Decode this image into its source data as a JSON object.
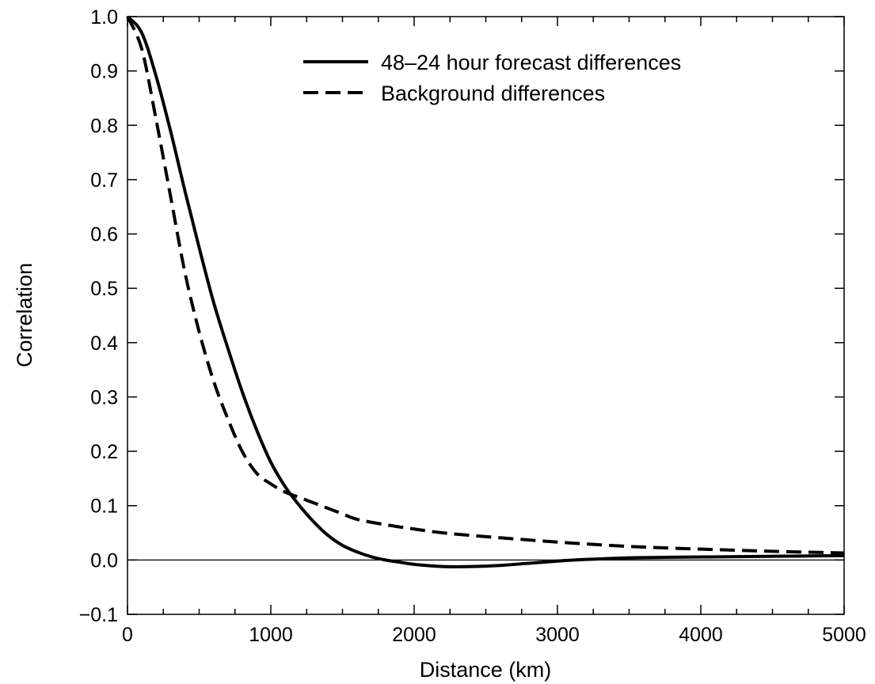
{
  "chart_data": {
    "type": "line",
    "title": "",
    "xlabel": "Distance (km)",
    "ylabel": "Correlation",
    "xlim": [
      0,
      5000
    ],
    "ylim": [
      -0.1,
      1.0
    ],
    "x_ticks": [
      0,
      1000,
      2000,
      3000,
      4000,
      5000
    ],
    "x_tick_labels": [
      "0",
      "1000",
      "2000",
      "3000",
      "4000",
      "5000"
    ],
    "y_ticks": [
      -0.1,
      0.0,
      0.1,
      0.2,
      0.3,
      0.4,
      0.5,
      0.6,
      0.7,
      0.8,
      0.9,
      1.0
    ],
    "y_tick_labels": [
      "−0.1",
      "0.0",
      "0.1",
      "0.2",
      "0.3",
      "0.4",
      "0.5",
      "0.6",
      "0.7",
      "0.8",
      "0.9",
      "1.0"
    ],
    "zero_line": true,
    "grid": false,
    "legend_position": "top-right",
    "series": [
      {
        "name": "48–24 hour forecast differences",
        "style": "solid",
        "color": "#000000",
        "x": [
          0,
          100,
          200,
          300,
          400,
          500,
          600,
          700,
          800,
          900,
          1000,
          1100,
          1200,
          1300,
          1400,
          1500,
          1600,
          1700,
          1800,
          1900,
          2000,
          2200,
          2400,
          2600,
          2800,
          3000,
          3200,
          3500,
          3800,
          4200,
          4600,
          5000
        ],
        "y": [
          1.0,
          0.97,
          0.89,
          0.79,
          0.68,
          0.575,
          0.475,
          0.39,
          0.31,
          0.24,
          0.18,
          0.135,
          0.1,
          0.07,
          0.045,
          0.027,
          0.015,
          0.006,
          0.0,
          -0.004,
          -0.008,
          -0.012,
          -0.012,
          -0.01,
          -0.006,
          -0.002,
          0.001,
          0.004,
          0.005,
          0.006,
          0.007,
          0.008
        ]
      },
      {
        "name": "Background differences",
        "style": "dashed",
        "color": "#000000",
        "x": [
          0,
          100,
          200,
          300,
          400,
          500,
          600,
          700,
          800,
          900,
          1000,
          1100,
          1200,
          1300,
          1400,
          1500,
          1600,
          1800,
          2000,
          2200,
          2500,
          3000,
          3500,
          4000,
          4500,
          5000
        ],
        "y": [
          1.0,
          0.94,
          0.81,
          0.67,
          0.53,
          0.42,
          0.33,
          0.26,
          0.2,
          0.16,
          0.14,
          0.125,
          0.115,
          0.105,
          0.095,
          0.085,
          0.075,
          0.065,
          0.057,
          0.05,
          0.043,
          0.033,
          0.025,
          0.02,
          0.016,
          0.013
        ]
      }
    ]
  }
}
